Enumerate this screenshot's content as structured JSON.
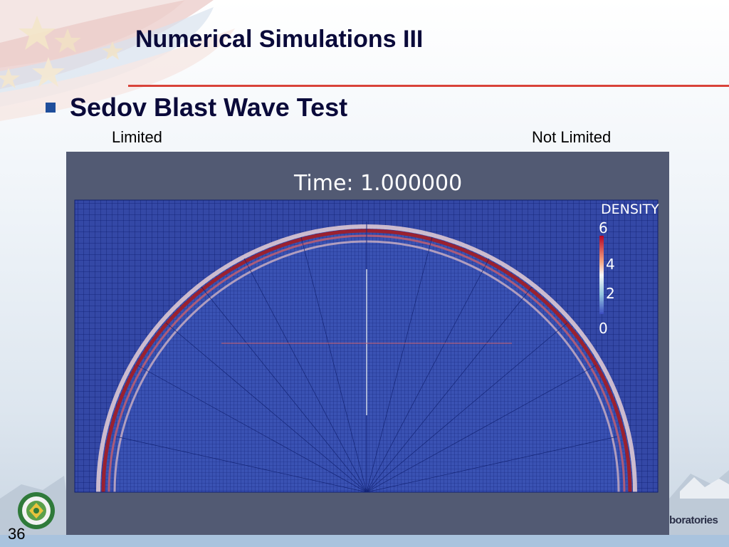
{
  "slide": {
    "title": "Numerical Simulations III",
    "bullet": "Sedov Blast Wave Test",
    "page_number": "36",
    "logo_text": "boratories"
  },
  "simulation": {
    "time_label": "Time: 1.000000",
    "labels": {
      "left": "Limited",
      "right": "Not Limited"
    },
    "colorbar": {
      "title": "DENSITY",
      "ticks": [
        "6",
        "4",
        "2",
        "0"
      ]
    }
  },
  "colors": {
    "accent_rule": "#d9433a",
    "bullet": "#1f4e9b",
    "panel_bg": "#525a73",
    "mesh_fill": "#3448a6",
    "shock": "#9a2130"
  }
}
